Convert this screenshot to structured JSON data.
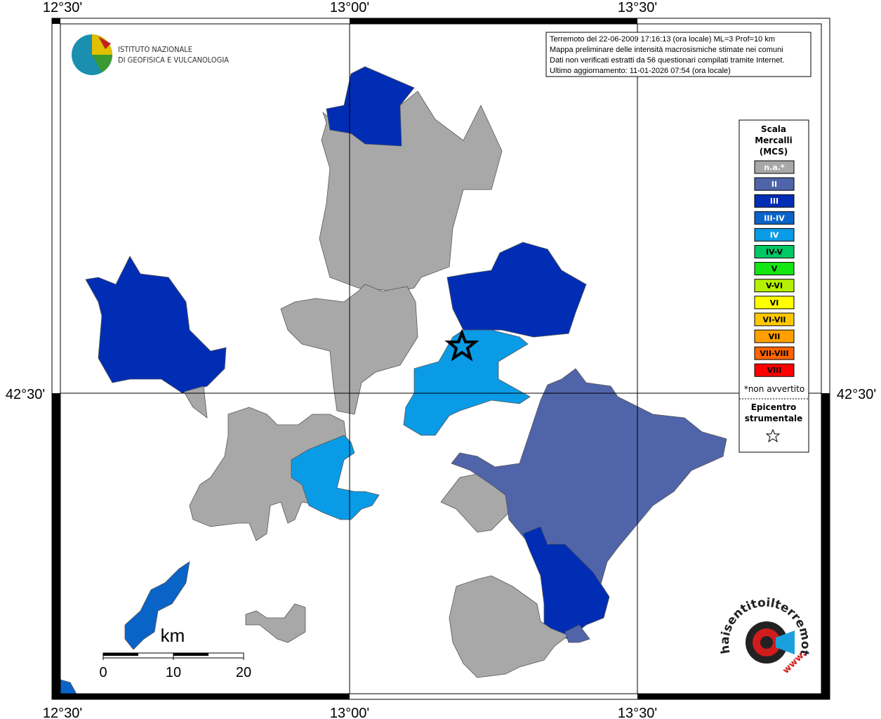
{
  "map": {
    "coordinates": {
      "top": [
        "12°30'",
        "13°00'",
        "13°30'"
      ],
      "bottom": [
        "12°30'",
        "13°00'",
        "13°30'"
      ],
      "left": "42°30'",
      "right": "42°30'"
    },
    "info": [
      "Terremoto del 22-06-2009 17:16:13 (ora locale) ML=3 Prof=10 km",
      "Mappa preliminare delle intensità macrosismiche stimate nei comuni",
      "Dati non verificati estratti da 56 questionari compilati tramite Internet.",
      "Ultimo aggiornamento: 11-01-2026 07:54 (ora locale)"
    ],
    "institute": [
      "ISTITUTO NAZIONALE",
      "DI GEOFISICA E VULCANOLOGIA"
    ],
    "legend": {
      "title": [
        "Scala",
        "Mercalli",
        "(MCS)"
      ],
      "classes": [
        {
          "label": "n.a.*",
          "color": "#a8a8a8"
        },
        {
          "label": "II",
          "color": "#5064aa"
        },
        {
          "label": "III",
          "color": "#002db4"
        },
        {
          "label": "III-IV",
          "color": "#0a64c8"
        },
        {
          "label": "IV",
          "color": "#0a9be6"
        },
        {
          "label": "IV-V",
          "color": "#00c864"
        },
        {
          "label": "V",
          "color": "#14e614"
        },
        {
          "label": "V-VI",
          "color": "#b4f000"
        },
        {
          "label": "VI",
          "color": "#ffff00"
        },
        {
          "label": "VI-VII",
          "color": "#ffc800"
        },
        {
          "label": "VII",
          "color": "#ffa000"
        },
        {
          "label": "VII-VIII",
          "color": "#ff6400"
        },
        {
          "label": "VIII",
          "color": "#ff0000"
        }
      ],
      "note": "*non avvertito",
      "epicenter": [
        "Epicentro",
        "strumentale"
      ]
    },
    "scale": {
      "unit": "km",
      "ticks": [
        0,
        10,
        20
      ]
    },
    "site": {
      "name": "haisentitoilterremoto.it",
      "prefix": "www."
    }
  }
}
